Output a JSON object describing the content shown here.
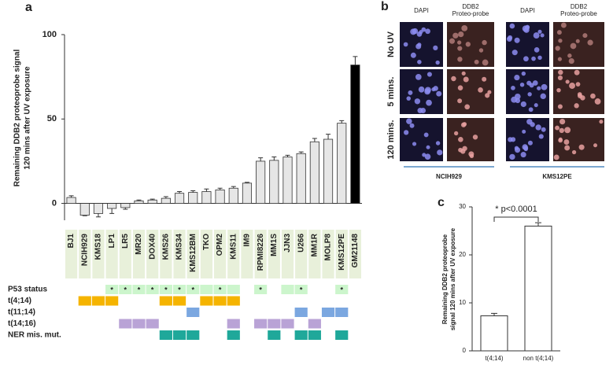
{
  "panel_labels": [
    "a",
    "b",
    "c"
  ],
  "chart_data": [
    {
      "type": "bar",
      "ylabel": [
        "Remaining DDB2 proteoprobe signal",
        "120 mins after UV exposure"
      ],
      "categories": [
        "BJ1",
        "NCIH929",
        "KMS18",
        "LP1",
        "LR5",
        "MR20",
        "DOX40",
        "KMS26",
        "KMS34",
        "KMS12BM",
        "TKO",
        "OPM2",
        "KMS11",
        "IM9",
        "RPMI8226",
        "MM1S",
        "JJN3",
        "U266",
        "MM1R",
        "MOLP8",
        "KMS12PE",
        "GM21148"
      ],
      "values": [
        3.5,
        -7,
        -6,
        -3,
        -2.5,
        1.5,
        2,
        3,
        6,
        6.5,
        7,
        8,
        9,
        12,
        25,
        25.5,
        27.5,
        29.5,
        36.5,
        38,
        47.5,
        82
      ],
      "errors": [
        1,
        0.3,
        2,
        3,
        1,
        0.5,
        0.5,
        1,
        1,
        1,
        1.5,
        1,
        1,
        0.5,
        2,
        2,
        1,
        1,
        2,
        3,
        1.5,
        5
      ],
      "colors": [
        "#e6e6e6",
        "#e6e6e6",
        "#e6e6e6",
        "#e6e6e6",
        "#e6e6e6",
        "#e6e6e6",
        "#e6e6e6",
        "#e6e6e6",
        "#e6e6e6",
        "#e6e6e6",
        "#e6e6e6",
        "#e6e6e6",
        "#e6e6e6",
        "#e6e6e6",
        "#e6e6e6",
        "#e6e6e6",
        "#e6e6e6",
        "#e6e6e6",
        "#e6e6e6",
        "#e6e6e6",
        "#e6e6e6",
        "#000000"
      ],
      "ylim": [
        -10,
        100
      ],
      "yticks": [
        0,
        50,
        100
      ],
      "star_label": "*",
      "annotation_rows": [
        {
          "name": "P53 status",
          "color": "#ccf5cc",
          "columns": [
            3,
            4,
            5,
            6,
            7,
            8,
            9,
            10,
            11,
            12,
            14,
            16,
            17,
            20
          ],
          "starred": [
            3,
            4,
            5,
            6,
            7,
            8,
            9,
            11,
            14,
            17,
            20
          ]
        },
        {
          "name": "t(4;14)",
          "color": "#f5b400",
          "columns": [
            1,
            2,
            3,
            7,
            8,
            10,
            11,
            12
          ]
        },
        {
          "name": "t(11;14)",
          "color": "#7ba7e0",
          "columns": [
            9,
            17,
            19,
            20
          ]
        },
        {
          "name": "t(14;16)",
          "color": "#b9a3d6",
          "columns": [
            4,
            5,
            6,
            12,
            14,
            15,
            16,
            18
          ]
        },
        {
          "name": "NER mis. mut.",
          "color": "#1fa89a",
          "columns": [
            7,
            8,
            9,
            12,
            15,
            17,
            18,
            20
          ]
        }
      ]
    },
    {
      "type": "bar",
      "ylabel": [
        "Remaining DDB2 proteoprobe",
        "signal 120 mins after UV exposure"
      ],
      "categories": [
        "t(4;14)",
        "non t(4;14)"
      ],
      "values": [
        7.3,
        26
      ],
      "errors": [
        0.5,
        0.7
      ],
      "colors": [
        "#ffffff",
        "#ffffff"
      ],
      "ylim": [
        0,
        30
      ],
      "yticks": [
        0,
        10,
        20,
        30
      ],
      "annotation": "* p<0.0001"
    }
  ],
  "image_panel": {
    "column_headers": [
      "DAPI",
      [
        "DDB2",
        "Proteo-probe"
      ],
      "DAPI",
      [
        "DDB2",
        "Proteo-probe"
      ]
    ],
    "row_labels": [
      "No UV",
      "5 mins.",
      "120 mins."
    ],
    "group_labels": [
      "NCIH929",
      "KMS12PE"
    ]
  }
}
